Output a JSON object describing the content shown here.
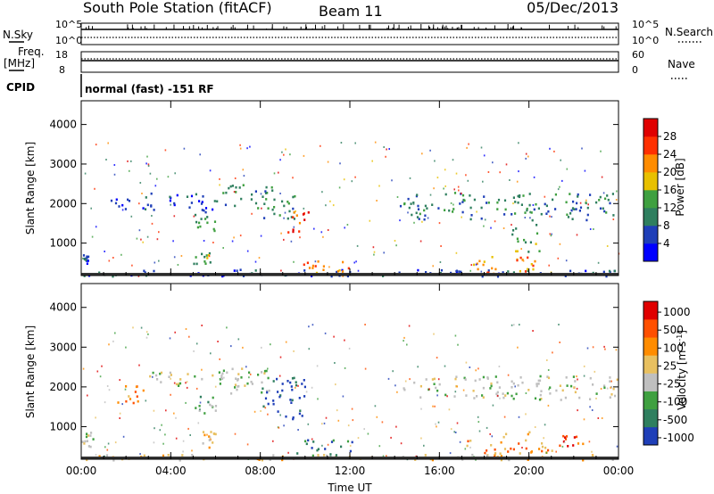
{
  "header": {
    "station": "South Pole Station (fitACF)",
    "beam": "Beam 11",
    "date": "05/Dec/2013"
  },
  "strips": {
    "nsky_label": "N.Sky",
    "nsky_ticks": [
      "10^5",
      "10^0"
    ],
    "nsearch_label": "N.Search",
    "nsearch_ticks": [
      "10^5",
      "10^0"
    ],
    "freq_label_1": "Freq.",
    "freq_label_2": "[MHz]",
    "freq_ticks": [
      "18",
      "8"
    ],
    "nave_label": "Nave",
    "nave_ticks": [
      "60",
      "0"
    ],
    "cpid_label": "CPID",
    "cpid_value": "normal (fast) -151 RF"
  },
  "chart_data": [
    {
      "type": "heatmap",
      "name": "power",
      "ylabel": "Slant Range [km]",
      "x_ticks": [
        "00:00",
        "04:00",
        "08:00",
        "12:00",
        "16:00",
        "20:00",
        "00:00"
      ],
      "y_ticks": [
        "1000",
        "2000",
        "3000",
        "4000"
      ],
      "xlim_hours": [
        0,
        24
      ],
      "ylim_km": [
        180,
        4600
      ],
      "colorbar": {
        "label": "Power [dB]",
        "ticks": [
          "4",
          "8",
          "12",
          "16",
          "20",
          "24",
          "28"
        ],
        "colors": [
          "#0000ff",
          "#1f3fb8",
          "#2f7f5f",
          "#3fa040",
          "#e8c000",
          "#ff8c00",
          "#ff3000",
          "#e00000"
        ]
      },
      "regions": [
        {
          "t": [
            0.0,
            0.3
          ],
          "r": [
            500,
            800
          ],
          "level": 1
        },
        {
          "t": [
            0.0,
            24.0
          ],
          "r": [
            180,
            360
          ],
          "level": 1
        },
        {
          "t": [
            1.3,
            3.0
          ],
          "r": [
            1800,
            2200
          ],
          "level": 1
        },
        {
          "t": [
            3.0,
            6.0
          ],
          "r": [
            1800,
            2300
          ],
          "level": 1
        },
        {
          "t": [
            6.0,
            8.5
          ],
          "r": [
            1900,
            2500
          ],
          "level": 2
        },
        {
          "t": [
            8.0,
            9.6
          ],
          "r": [
            1600,
            2400
          ],
          "level": 2
        },
        {
          "t": [
            9.2,
            10.2
          ],
          "r": [
            1300,
            1900
          ],
          "level": 6
        },
        {
          "t": [
            5.0,
            6.0
          ],
          "r": [
            1300,
            1800
          ],
          "level": 3
        },
        {
          "t": [
            5.0,
            6.0
          ],
          "r": [
            500,
            800
          ],
          "level": 3
        },
        {
          "t": [
            9.8,
            12.3
          ],
          "r": [
            250,
            600
          ],
          "level": 5
        },
        {
          "t": [
            14.2,
            24.0
          ],
          "r": [
            1600,
            2300
          ],
          "level": 2
        },
        {
          "t": [
            17.5,
            18.5
          ],
          "r": [
            250,
            700
          ],
          "level": 5
        },
        {
          "t": [
            19.4,
            20.3
          ],
          "r": [
            300,
            700
          ],
          "level": 5
        },
        {
          "t": [
            19.2,
            20.5
          ],
          "r": [
            800,
            1500
          ],
          "level": 3
        }
      ]
    },
    {
      "type": "heatmap",
      "name": "velocity",
      "ylabel": "Slant Range [km]",
      "xlabel": "Time UT",
      "x_ticks": [
        "00:00",
        "04:00",
        "08:00",
        "12:00",
        "16:00",
        "20:00",
        "00:00"
      ],
      "y_ticks": [
        "1000",
        "2000",
        "3000",
        "4000"
      ],
      "xlim_hours": [
        0,
        24
      ],
      "ylim_km": [
        180,
        4600
      ],
      "colorbar": {
        "label": "Velocity [m s^-1]",
        "ticks": [
          "1000",
          "500",
          "100",
          "25",
          "-25",
          "-100",
          "-500",
          "-1000"
        ],
        "colors": [
          "#1f3fb8",
          "#2f7f5f",
          "#3fa040",
          "#bfbfbf",
          "#e8c060",
          "#ff8c00",
          "#ff5000",
          "#e00000"
        ]
      },
      "regions": [
        {
          "t": [
            0.0,
            0.5
          ],
          "r": [
            500,
            900
          ],
          "level": 3
        },
        {
          "t": [
            0.0,
            24.0
          ],
          "r": [
            180,
            320
          ],
          "level": 4
        },
        {
          "t": [
            1.5,
            2.8
          ],
          "r": [
            1600,
            2100
          ],
          "level": 5
        },
        {
          "t": [
            3.0,
            7.0
          ],
          "r": [
            2000,
            2400
          ],
          "level": 3
        },
        {
          "t": [
            5.0,
            6.0
          ],
          "r": [
            1300,
            1800
          ],
          "level": 2
        },
        {
          "t": [
            5.2,
            6.0
          ],
          "r": [
            500,
            900
          ],
          "level": 4
        },
        {
          "t": [
            6.0,
            8.5
          ],
          "r": [
            1800,
            2500
          ],
          "level": 3
        },
        {
          "t": [
            8.0,
            10.0
          ],
          "r": [
            1200,
            2300
          ],
          "level": 0
        },
        {
          "t": [
            9.6,
            12.2
          ],
          "r": [
            250,
            700
          ],
          "level": 1
        },
        {
          "t": [
            14.2,
            24.0
          ],
          "r": [
            1700,
            2300
          ],
          "level": 3
        },
        {
          "t": [
            17.2,
            18.8
          ],
          "r": [
            250,
            700
          ],
          "level": 5
        },
        {
          "t": [
            18.8,
            21.0
          ],
          "r": [
            300,
            900
          ],
          "level": 5
        },
        {
          "t": [
            21.3,
            22.5
          ],
          "r": [
            500,
            800
          ],
          "level": 6
        }
      ]
    }
  ]
}
